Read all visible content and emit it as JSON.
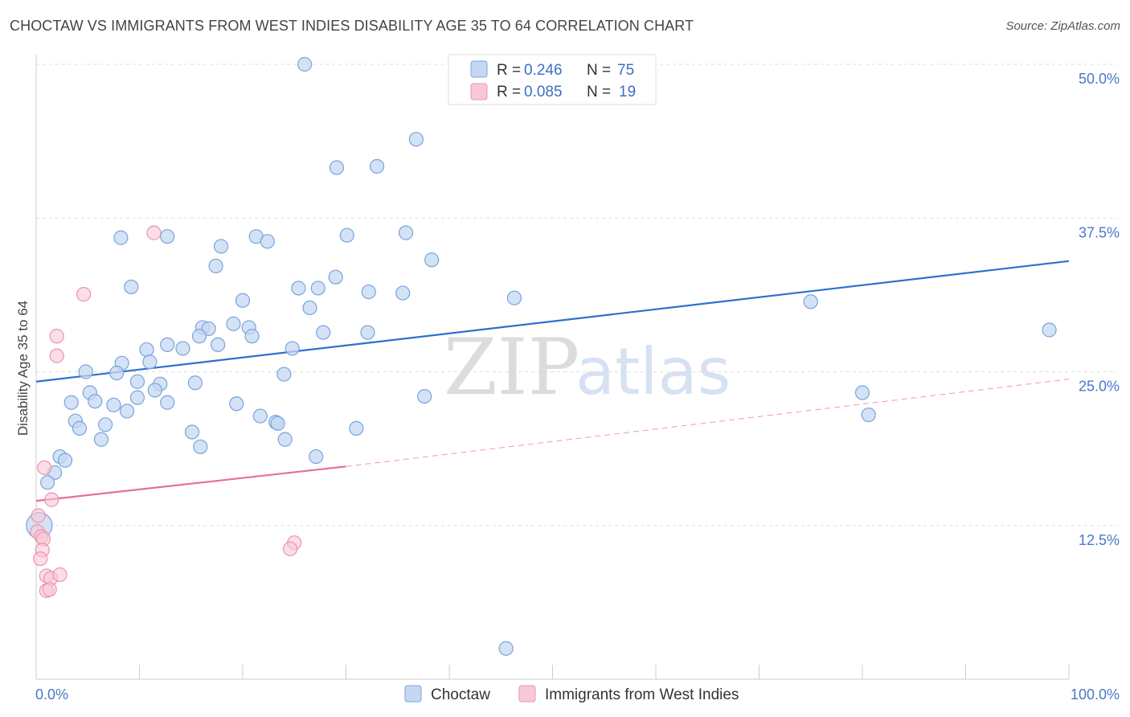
{
  "title": "CHOCTAW VS IMMIGRANTS FROM WEST INDIES DISABILITY AGE 35 TO 64 CORRELATION CHART",
  "source": "Source: ZipAtlas.com",
  "watermark": {
    "zip": "ZIP",
    "atlas": "atlas"
  },
  "legend": {
    "r_label": "R =",
    "n_label": "N =",
    "entries": [
      {
        "r": "0.246",
        "n": "75"
      },
      {
        "r": "0.085",
        "n": "19"
      }
    ]
  },
  "bottom_legend": [
    "Choctaw",
    "Immigrants from West Indies"
  ],
  "colors": {
    "choctaw_fill": "#c5d8f3",
    "choctaw_stroke": "#7aa3dc",
    "choctaw_line": "#2f6fcf",
    "wi_fill": "#f8c8d6",
    "wi_stroke": "#ec93ad",
    "wi_line": "#e86d98",
    "grid": "#dddddd",
    "tick_label": "#4a78c8"
  },
  "chart_data": {
    "type": "scatter",
    "title": "CHOCTAW VS IMMIGRANTS FROM WEST INDIES DISABILITY AGE 35 TO 64 CORRELATION CHART",
    "xlabel": "",
    "ylabel": "Disability Age 35 to 64",
    "xlim": [
      0,
      100
    ],
    "ylim": [
      0,
      50
    ],
    "x_tick_labels": [
      "0.0%",
      "100.0%"
    ],
    "y_ticks": [
      12.5,
      25.0,
      37.5,
      50.0
    ],
    "y_tick_labels": [
      "12.5%",
      "25.0%",
      "37.5%",
      "50.0%"
    ],
    "grid": true,
    "legend_position": "top-center",
    "series": [
      {
        "name": "Choctaw",
        "points": [
          [
            26.0,
            50.0
          ],
          [
            36.8,
            43.9
          ],
          [
            29.1,
            41.6
          ],
          [
            33.0,
            41.7
          ],
          [
            8.2,
            35.9
          ],
          [
            12.7,
            36.0
          ],
          [
            21.3,
            36.0
          ],
          [
            22.4,
            35.6
          ],
          [
            30.1,
            36.1
          ],
          [
            35.8,
            36.3
          ],
          [
            17.9,
            35.2
          ],
          [
            38.3,
            34.1
          ],
          [
            17.4,
            33.6
          ],
          [
            29.0,
            32.7
          ],
          [
            9.2,
            31.9
          ],
          [
            25.4,
            31.8
          ],
          [
            27.3,
            31.8
          ],
          [
            32.2,
            31.5
          ],
          [
            35.5,
            31.4
          ],
          [
            46.3,
            31.0
          ],
          [
            20.0,
            30.8
          ],
          [
            26.5,
            30.2
          ],
          [
            75.0,
            30.7
          ],
          [
            98.1,
            28.4
          ],
          [
            16.1,
            28.6
          ],
          [
            16.7,
            28.5
          ],
          [
            19.1,
            28.9
          ],
          [
            20.6,
            28.6
          ],
          [
            15.8,
            27.9
          ],
          [
            20.9,
            27.9
          ],
          [
            27.8,
            28.2
          ],
          [
            32.1,
            28.2
          ],
          [
            17.6,
            27.2
          ],
          [
            12.7,
            27.2
          ],
          [
            14.2,
            26.9
          ],
          [
            10.7,
            26.8
          ],
          [
            24.8,
            26.9
          ],
          [
            8.3,
            25.7
          ],
          [
            11.0,
            25.8
          ],
          [
            4.8,
            25.0
          ],
          [
            7.8,
            24.9
          ],
          [
            24.0,
            24.8
          ],
          [
            9.8,
            24.2
          ],
          [
            12.0,
            24.0
          ],
          [
            15.4,
            24.1
          ],
          [
            11.5,
            23.5
          ],
          [
            5.2,
            23.3
          ],
          [
            37.6,
            23.0
          ],
          [
            9.8,
            22.9
          ],
          [
            3.4,
            22.5
          ],
          [
            5.7,
            22.6
          ],
          [
            7.5,
            22.3
          ],
          [
            12.7,
            22.5
          ],
          [
            19.4,
            22.4
          ],
          [
            80.0,
            23.3
          ],
          [
            8.8,
            21.8
          ],
          [
            21.7,
            21.4
          ],
          [
            3.8,
            21.0
          ],
          [
            6.7,
            20.7
          ],
          [
            23.2,
            20.9
          ],
          [
            23.4,
            20.8
          ],
          [
            4.2,
            20.4
          ],
          [
            31.0,
            20.4
          ],
          [
            15.1,
            20.1
          ],
          [
            6.3,
            19.5
          ],
          [
            24.1,
            19.5
          ],
          [
            15.9,
            18.9
          ],
          [
            80.6,
            21.5
          ],
          [
            2.3,
            18.1
          ],
          [
            2.8,
            17.8
          ],
          [
            27.1,
            18.1
          ],
          [
            1.8,
            16.8
          ],
          [
            1.1,
            16.0
          ],
          [
            0.3,
            12.5
          ],
          [
            45.5,
            2.5
          ]
        ]
      },
      {
        "name": "Immigrants from West Indies",
        "points": [
          [
            11.4,
            36.3
          ],
          [
            4.6,
            31.3
          ],
          [
            2.0,
            27.9
          ],
          [
            2.0,
            26.3
          ],
          [
            0.8,
            17.2
          ],
          [
            1.5,
            14.6
          ],
          [
            0.2,
            13.3
          ],
          [
            0.1,
            12.0
          ],
          [
            0.5,
            11.6
          ],
          [
            0.7,
            11.4
          ],
          [
            0.6,
            10.5
          ],
          [
            0.4,
            9.8
          ],
          [
            25.0,
            11.1
          ],
          [
            24.6,
            10.6
          ],
          [
            1.0,
            8.4
          ],
          [
            1.4,
            8.2
          ],
          [
            2.3,
            8.5
          ],
          [
            1.0,
            7.2
          ],
          [
            1.3,
            7.3
          ]
        ]
      }
    ],
    "trend_lines": [
      {
        "series": "Choctaw",
        "x": [
          0,
          100
        ],
        "y": [
          24.2,
          34.0
        ]
      },
      {
        "series": "Immigrants from West Indies",
        "x_solid": [
          0,
          30
        ],
        "y_solid": [
          14.5,
          17.3
        ],
        "x_dashed": [
          30,
          100
        ],
        "y_dashed": [
          17.3,
          24.4
        ]
      }
    ]
  }
}
